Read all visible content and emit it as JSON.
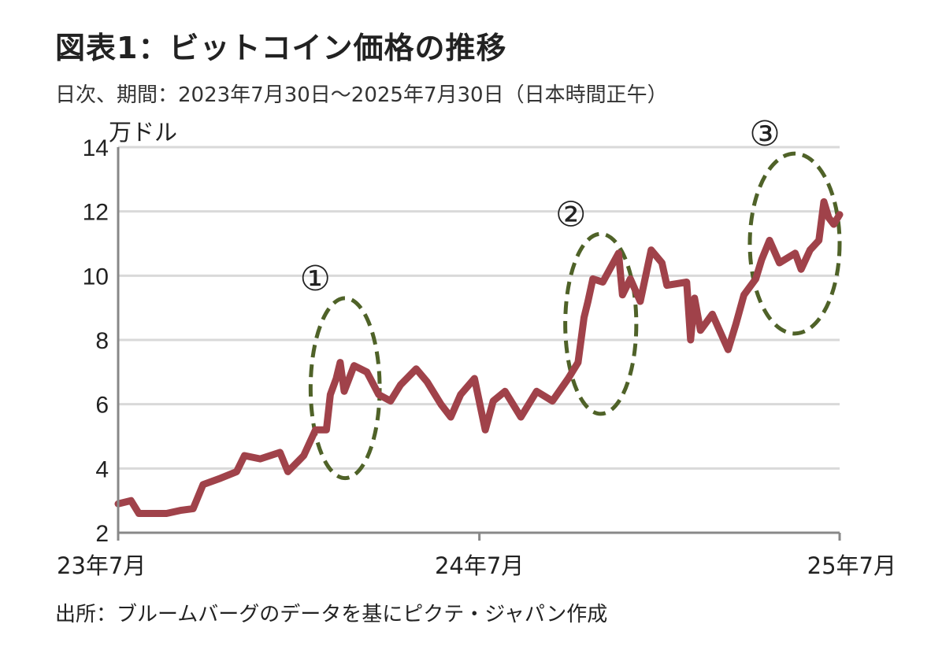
{
  "title": "図表1：ビットコイン価格の推移",
  "subtitle": "日次、期間：2023年7月30日～2025年7月30日（日本時間正午）",
  "source": "出所：ブルームバーグのデータを基にピクテ・ジャパン作成",
  "chart_data": {
    "type": "line",
    "title": "図表1：ビットコイン価格の推移",
    "ylabel": "万ドル",
    "xlabel": "",
    "ylim": [
      2,
      14
    ],
    "yticks": [
      2,
      4,
      6,
      8,
      10,
      12,
      14
    ],
    "xlim": [
      "2023-07-30",
      "2025-07-30"
    ],
    "xticks": [
      {
        "date": "2023-07-30",
        "label": "23年7月"
      },
      {
        "date": "2024-07-30",
        "label": "24年7月"
      },
      {
        "date": "2025-07-30",
        "label": "25年7月"
      }
    ],
    "grid": true,
    "line_color": "#a0424a",
    "annotation_color": "#4f6228",
    "series": [
      {
        "x": [
          "2023-07-30",
          "2023-08-12",
          "2023-08-20",
          "2023-09-17",
          "2023-10-02",
          "2023-10-14",
          "2023-10-24",
          "2023-11-11",
          "2023-11-27",
          "2023-12-05",
          "2023-12-21",
          "2024-01-10",
          "2024-01-18",
          "2024-02-03",
          "2024-02-15",
          "2024-02-26",
          "2024-03-01",
          "2024-03-07",
          "2024-03-11",
          "2024-03-15",
          "2024-03-25",
          "2024-04-07",
          "2024-04-19",
          "2024-05-01",
          "2024-05-11",
          "2024-05-27",
          "2024-06-07",
          "2024-06-21",
          "2024-07-01",
          "2024-07-11",
          "2024-07-25",
          "2024-08-05",
          "2024-08-13",
          "2024-08-25",
          "2024-09-10",
          "2024-09-26",
          "2024-10-12",
          "2024-10-28",
          "2024-11-07",
          "2024-11-13",
          "2024-11-17",
          "2024-11-22",
          "2024-12-02",
          "2024-12-18",
          "2024-12-22",
          "2024-12-30",
          "2025-01-09",
          "2025-01-20",
          "2025-01-31",
          "2025-02-05",
          "2025-02-25",
          "2025-03-01",
          "2025-03-05",
          "2025-03-11",
          "2025-03-23",
          "2025-04-08",
          "2025-04-16",
          "2025-04-24",
          "2025-05-06",
          "2025-05-12",
          "2025-05-20",
          "2025-05-30",
          "2025-06-15",
          "2025-06-21",
          "2025-06-30",
          "2025-07-09",
          "2025-07-14",
          "2025-07-19",
          "2025-07-24",
          "2025-07-30"
        ],
        "values": [
          2.9,
          3.0,
          2.6,
          2.6,
          2.7,
          2.75,
          3.5,
          3.7,
          3.9,
          4.4,
          4.3,
          4.5,
          3.9,
          4.4,
          5.2,
          5.2,
          6.3,
          6.8,
          7.3,
          6.4,
          7.2,
          7.0,
          6.3,
          6.1,
          6.6,
          7.1,
          6.7,
          6.0,
          5.6,
          6.3,
          6.8,
          5.2,
          6.1,
          6.4,
          5.6,
          6.4,
          6.1,
          6.8,
          7.3,
          8.7,
          9.2,
          9.9,
          9.8,
          10.7,
          9.4,
          9.9,
          9.2,
          10.8,
          10.4,
          9.7,
          9.8,
          8.0,
          9.3,
          8.3,
          8.8,
          7.7,
          8.5,
          9.4,
          9.9,
          10.5,
          11.1,
          10.4,
          10.7,
          10.2,
          10.8,
          11.1,
          12.3,
          11.8,
          11.6,
          11.9
        ]
      }
    ],
    "annotations": [
      {
        "label": "①",
        "from": "2024-02-10",
        "to": "2024-04-20",
        "ylow": 3.7,
        "yhigh": 9.3
      },
      {
        "label": "②",
        "from": "2024-10-25",
        "to": "2025-01-05",
        "ylow": 5.7,
        "yhigh": 11.3
      },
      {
        "label": "③",
        "from": "2025-04-30",
        "to": "2025-07-30",
        "ylow": 8.2,
        "yhigh": 13.8
      }
    ]
  }
}
